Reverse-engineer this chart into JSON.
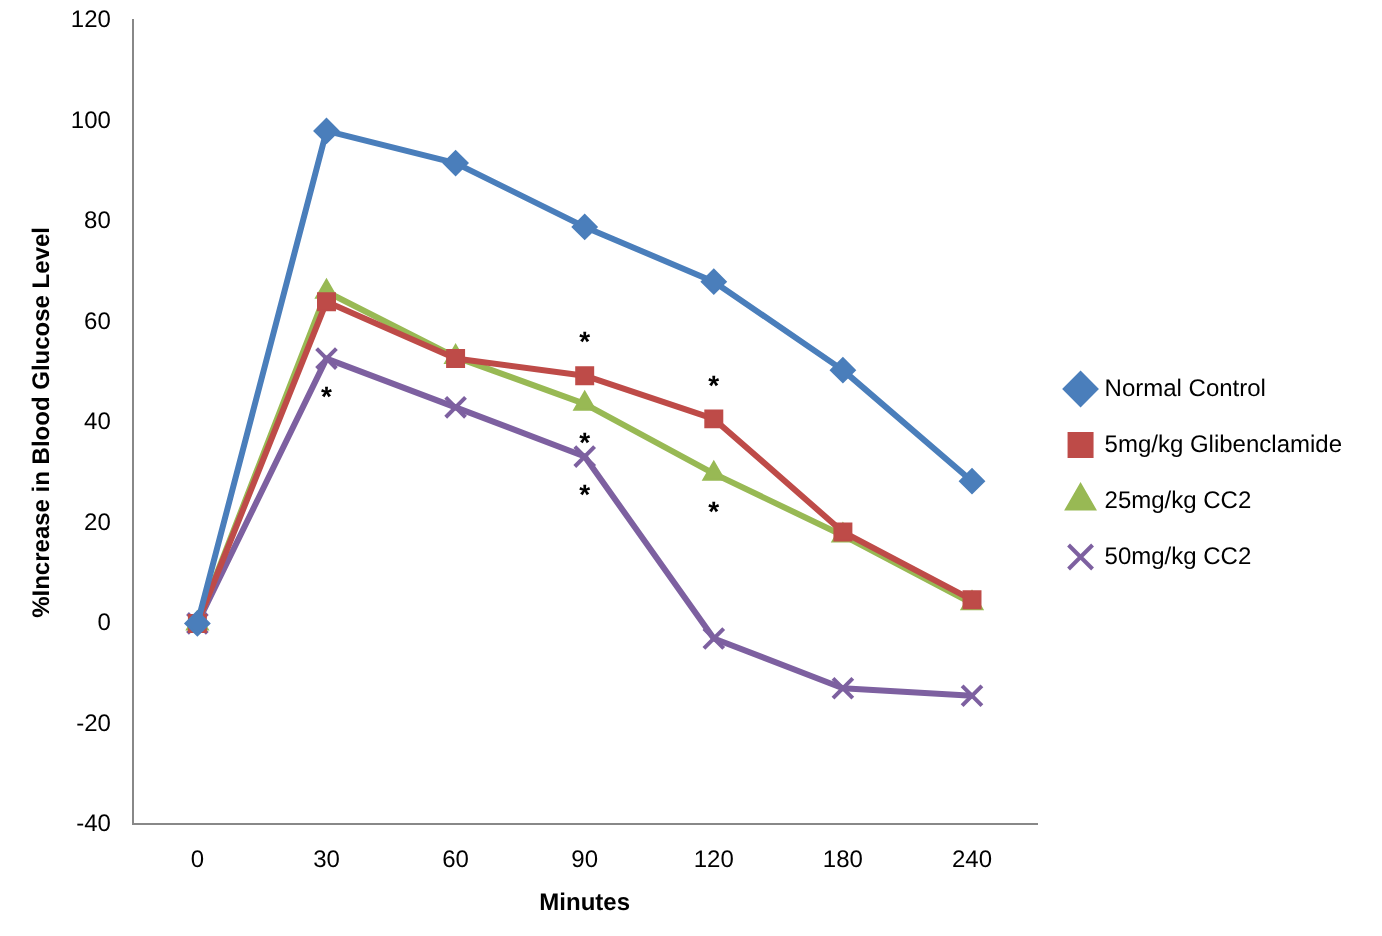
{
  "chart_data": {
    "type": "line",
    "xlabel": "Minutes",
    "ylabel": "%Increase in Blood Glucose Level",
    "categories": [
      "0",
      "30",
      "60",
      "90",
      "120",
      "180",
      "240"
    ],
    "series": [
      {
        "name": "Normal Control",
        "color": "#4a7ebb",
        "marker": "diamond",
        "values": [
          0,
          98,
          91.6,
          78.9,
          68,
          50.4,
          28.3
        ]
      },
      {
        "name": "5mg/kg Glibenclamide",
        "color": "#be4b48",
        "marker": "square",
        "values": [
          0,
          64,
          52.7,
          49.3,
          40.7,
          18.2,
          4.7
        ]
      },
      {
        "name": "25mg/kg CC2",
        "color": "#98b954",
        "marker": "triangle",
        "values": [
          0,
          66,
          53,
          43.7,
          29.8,
          17.5,
          4
        ]
      },
      {
        "name": "50mg/kg CC2",
        "color": "#7d60a0",
        "marker": "cross",
        "values": [
          0,
          52.7,
          43,
          33.2,
          -3,
          -12.9,
          -14.4
        ]
      }
    ],
    "ylim": [
      -40,
      120
    ],
    "yticks": [
      -40,
      -20,
      0,
      20,
      40,
      60,
      80,
      100,
      120
    ],
    "grid": false,
    "legend": "right",
    "annotations": [
      {
        "text": "*",
        "x": "30",
        "y": 52.7
      },
      {
        "text": "*",
        "x": "90",
        "y": 49.3
      },
      {
        "text": "*",
        "x": "90",
        "y": 43.7
      },
      {
        "text": "*",
        "x": "90",
        "y": 33.2
      },
      {
        "text": "*",
        "x": "120",
        "y": 40.7
      },
      {
        "text": "*",
        "x": "120",
        "y": 29.8
      }
    ]
  }
}
